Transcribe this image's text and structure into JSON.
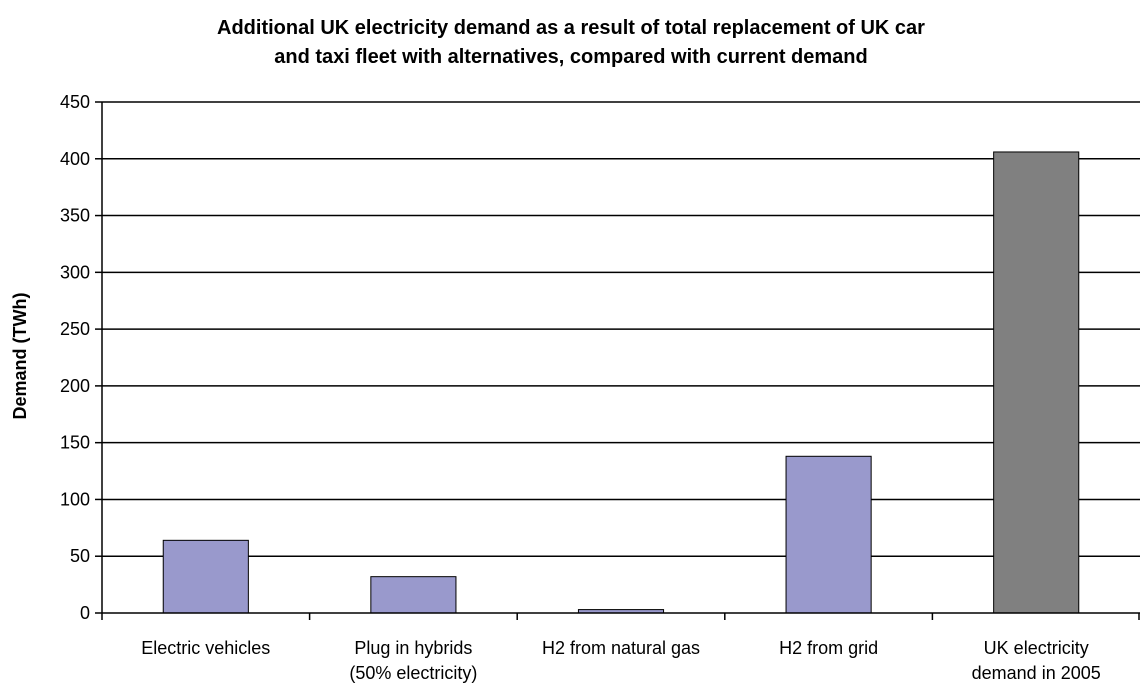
{
  "chart_data": {
    "type": "bar",
    "title_lines": [
      "Additional UK electricity demand as a result of total replacement of UK car",
      "and taxi fleet with alternatives, compared with current demand"
    ],
    "xlabel": "",
    "ylabel": "Demand (TWh)",
    "ylim": [
      0,
      450
    ],
    "yticks": [
      0,
      50,
      100,
      150,
      200,
      250,
      300,
      350,
      400,
      450
    ],
    "grid": true,
    "legend": "none",
    "categories": [
      [
        "Electric vehicles"
      ],
      [
        "Plug in hybrids",
        "(50% electricity)"
      ],
      [
        "H2 from natural gas"
      ],
      [
        "H2 from grid"
      ],
      [
        "UK electricity",
        "demand in 2005"
      ]
    ],
    "values": [
      64,
      32,
      3,
      138,
      406
    ],
    "colors": [
      "#9999cc",
      "#9999cc",
      "#9999cc",
      "#9999cc",
      "#808080"
    ]
  }
}
